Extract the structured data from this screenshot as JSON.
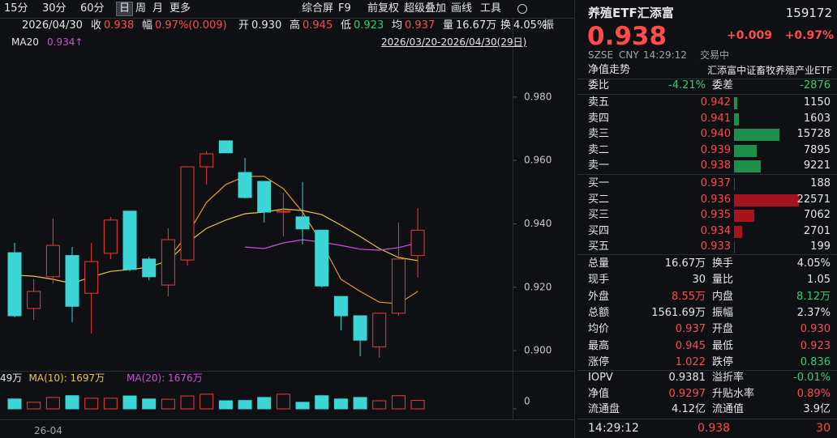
{
  "toolbar": {
    "periods": [
      "15分",
      "30分",
      "60分",
      "日",
      "周",
      "月",
      "更多"
    ],
    "active": 3,
    "tools": [
      "综合屏",
      "F9",
      "前复权",
      "超级叠加",
      "画线",
      "工具"
    ],
    "extra": "振"
  },
  "info": {
    "date": "2026/04/30",
    "items": [
      {
        "k": "收",
        "v": "0.938",
        "color": "#ff4b4b"
      },
      {
        "k": "幅",
        "v": "0.97%(0.009)",
        "color": "#ff4b4b"
      },
      {
        "k": "开",
        "v": "0.930",
        "color": "#e6e6e6"
      },
      {
        "k": "高",
        "v": "0.945",
        "color": "#ff4b4b"
      },
      {
        "k": "低",
        "v": "0.923",
        "color": "#2fd16c"
      },
      {
        "k": "均",
        "v": "0.937",
        "color": "#ff4b4b"
      },
      {
        "k": "量",
        "v": "16.67万",
        "color": "#e6e6e6"
      },
      {
        "k": "换",
        "v": "4.05%",
        "color": "#e6e6e6"
      }
    ]
  },
  "legend": {
    "ma20": "MA20",
    "ma20_value": "0.934↑",
    "range": "2026/03/20-2026/04/30(29日)"
  },
  "chart": {
    "ylim": [
      0.8944,
      0.9953
    ],
    "yticks": [
      {
        "value": 0.98,
        "label": "0.980"
      },
      {
        "value": 0.96,
        "label": "0.960"
      },
      {
        "value": 0.94,
        "label": "0.940"
      },
      {
        "value": 0.92,
        "label": "0.920"
      },
      {
        "value": 0.9,
        "label": "0.900"
      }
    ],
    "up_color": "#f03a3a",
    "down_color": "#3cd6d6",
    "candles": [
      {
        "open": 0.9309,
        "high": 0.934,
        "low": 0.9105,
        "close": 0.911
      },
      {
        "open": 0.9133,
        "high": 0.9225,
        "low": 0.9097,
        "close": 0.9187
      },
      {
        "open": 0.9233,
        "high": 0.9417,
        "low": 0.9212,
        "close": 0.9332
      },
      {
        "open": 0.93,
        "high": 0.9327,
        "low": 0.909,
        "close": 0.914
      },
      {
        "open": 0.9181,
        "high": 0.934,
        "low": 0.9054,
        "close": 0.9281
      },
      {
        "open": 0.9307,
        "high": 0.9422,
        "low": 0.9289,
        "close": 0.9412
      },
      {
        "open": 0.944,
        "high": 0.944,
        "low": 0.925,
        "close": 0.9256
      },
      {
        "open": 0.9289,
        "high": 0.9296,
        "low": 0.9222,
        "close": 0.9233
      },
      {
        "open": 0.9207,
        "high": 0.9386,
        "low": 0.9171,
        "close": 0.935
      },
      {
        "open": 0.9286,
        "high": 0.958,
        "low": 0.9268,
        "close": 0.958
      },
      {
        "open": 0.958,
        "high": 0.9629,
        "low": 0.9524,
        "close": 0.9621
      },
      {
        "open": 0.9662,
        "high": 0.9662,
        "low": 0.9624,
        "close": 0.9624
      },
      {
        "open": 0.9562,
        "high": 0.9608,
        "low": 0.948,
        "close": 0.9483
      },
      {
        "open": 0.9534,
        "high": 0.9534,
        "low": 0.9404,
        "close": 0.9437
      },
      {
        "open": 0.9437,
        "high": 0.9498,
        "low": 0.936,
        "close": 0.944
      },
      {
        "open": 0.9422,
        "high": 0.9532,
        "low": 0.9335,
        "close": 0.9384
      },
      {
        "open": 0.938,
        "high": 0.938,
        "low": 0.9199,
        "close": 0.9204
      },
      {
        "open": 0.9171,
        "high": 0.9171,
        "low": 0.9064,
        "close": 0.911
      },
      {
        "open": 0.911,
        "high": 0.911,
        "low": 0.8982,
        "close": 0.9033
      },
      {
        "open": 0.9012,
        "high": 0.9118,
        "low": 0.8977,
        "close": 0.9118
      },
      {
        "open": 0.9118,
        "high": 0.9404,
        "low": 0.911,
        "close": 0.9289
      },
      {
        "open": 0.93,
        "high": 0.945,
        "low": 0.923,
        "close": 0.938
      }
    ],
    "lines": [
      {
        "color": "#e8c547",
        "values": [
          0.9238,
          0.9235,
          0.9225,
          0.9212,
          0.9233,
          0.925,
          0.9256,
          0.9263,
          0.9284,
          0.934,
          0.9386,
          0.9412,
          0.9432,
          0.9437,
          0.9447,
          0.9442,
          0.9429,
          0.9396,
          0.936,
          0.9322,
          0.9294,
          0.9284
        ]
      },
      {
        "color": "#e89a2c",
        "values": [
          null,
          null,
          null,
          null,
          null,
          null,
          null,
          null,
          0.9289,
          0.9366,
          0.9468,
          0.9524,
          0.955,
          0.955,
          0.9511,
          0.9437,
          0.934,
          0.9225,
          0.9187,
          0.9153,
          0.9148,
          0.9187
        ]
      },
      {
        "color": "#d04fd8",
        "values": [
          null,
          null,
          null,
          null,
          null,
          null,
          null,
          null,
          null,
          null,
          null,
          null,
          0.9327,
          0.9322,
          0.934,
          0.935,
          0.9342,
          0.9332,
          0.932,
          0.9317,
          0.9325,
          0.934
        ]
      }
    ]
  },
  "volume": {
    "ylim": [
      0,
      4000
    ],
    "yticks": [
      0
    ],
    "values": [
      1950,
      1300,
      2250,
      2600,
      2100,
      2100,
      2550,
      1950,
      1900,
      2550,
      2900,
      1600,
      1650,
      2250,
      2900,
      1300,
      2600,
      1950,
      2250,
      1600,
      2600,
      1667
    ],
    "legend": [
      {
        "text": "49万",
        "color": "#e6e6e6"
      },
      {
        "text": "MA(10): 1697万",
        "color": "#e8c547"
      },
      {
        "text": "MA(20): 1676万",
        "color": "#d04fd8"
      }
    ]
  },
  "x_label": "26-04",
  "quote": {
    "name": "养殖ETF汇添富",
    "code": "159172",
    "price": "0.938",
    "change": "+0.009",
    "pct": "+0.97%",
    "meta": [
      "SZSE",
      "CNY",
      "14:29:12",
      "交易中"
    ],
    "nav_trend": "净值走势",
    "fund_name": "汇添富中证畜牧养殖产业ETF",
    "ratio_label": "委比",
    "ratio": "-4.21%",
    "diff_label": "委差",
    "diff": "-2876",
    "asks": [
      {
        "label": "卖五",
        "price": "0.942",
        "volume": 1150
      },
      {
        "label": "卖四",
        "price": "0.941",
        "volume": 1603
      },
      {
        "label": "卖三",
        "price": "0.940",
        "volume": 15728
      },
      {
        "label": "卖二",
        "price": "0.939",
        "volume": 7895
      },
      {
        "label": "卖一",
        "price": "0.938",
        "volume": 9221
      }
    ],
    "bids": [
      {
        "label": "买一",
        "price": "0.937",
        "volume": 188
      },
      {
        "label": "买二",
        "price": "0.936",
        "volume": 22571
      },
      {
        "label": "买三",
        "price": "0.935",
        "volume": 7062
      },
      {
        "label": "买四",
        "price": "0.934",
        "volume": 2701
      },
      {
        "label": "买五",
        "price": "0.933",
        "volume": 199
      }
    ],
    "ask_color": "#1f8f4e",
    "bid_color": "#a8141e",
    "stats": [
      {
        "cells": [
          "总量",
          "16.67万",
          "换手",
          "4.05%"
        ],
        "colors": [
          "#e6e6e6",
          "#e6e6e6"
        ]
      },
      {
        "cells": [
          "现手",
          "30",
          "量比",
          "1.05"
        ],
        "colors": [
          "#e6e6e6",
          "#e6e6e6"
        ]
      },
      {
        "cells": [
          "外盘",
          "8.55万",
          "内盘",
          "8.12万"
        ],
        "colors": [
          "#ff4b4b",
          "#2fd16c"
        ]
      },
      {
        "cells": [
          "总额",
          "1561.69万",
          "振幅",
          "2.37%"
        ],
        "colors": [
          "#e6e6e6",
          "#e6e6e6"
        ]
      },
      {
        "cells": [
          "均价",
          "0.937",
          "开盘",
          "0.930"
        ],
        "colors": [
          "#ff4b4b",
          "#ff4b4b"
        ]
      },
      {
        "cells": [
          "最高",
          "0.945",
          "最低",
          "0.923"
        ],
        "colors": [
          "#ff4b4b",
          "#ff4b4b"
        ]
      },
      {
        "cells": [
          "涨停",
          "1.022",
          "跌停",
          "0.836"
        ],
        "colors": [
          "#ff4b4b",
          "#2fd16c"
        ]
      }
    ],
    "extra": [
      {
        "cells": [
          "IOPV",
          "0.9381",
          "溢折率",
          "-0.01%"
        ],
        "colors": [
          "#e6e6e6",
          "#2fd16c"
        ]
      },
      {
        "cells": [
          "净值",
          "0.9297",
          "升贴水率",
          "0.89%"
        ],
        "colors": [
          "#ff4b4b",
          "#ff4b4b"
        ]
      },
      {
        "cells": [
          "流通盘",
          "4.12亿",
          "流通值",
          "3.9亿"
        ],
        "colors": [
          "#e6e6e6",
          "#e6e6e6"
        ]
      }
    ],
    "tick": {
      "time": "14:29:12",
      "price": "0.938",
      "volume": "30"
    }
  }
}
